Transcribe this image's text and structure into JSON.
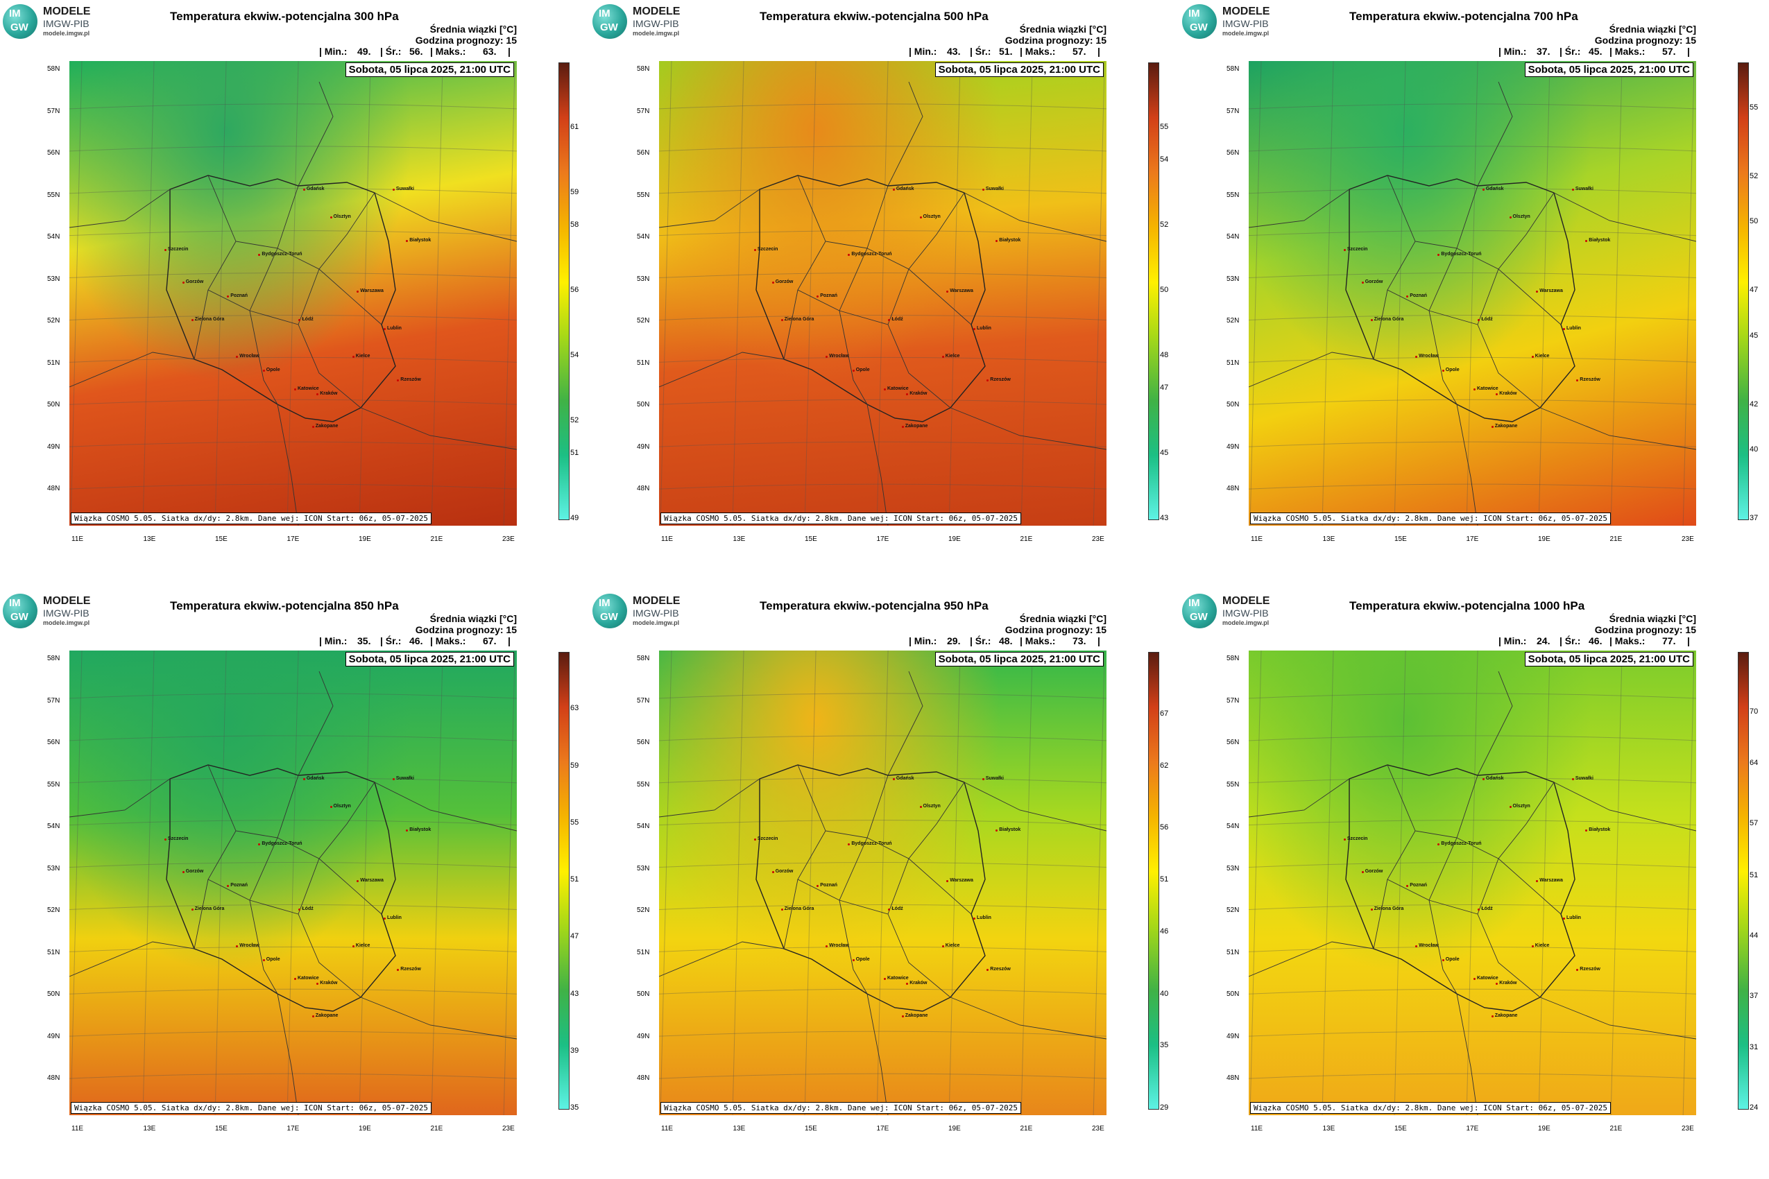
{
  "logo": {
    "top": "MODELE",
    "org": "IMGW-PIB",
    "url": "modele.imgw.pl",
    "mark_top": "IM",
    "mark_bottom": "GW"
  },
  "info": {
    "line1": "Średnia wiązki [°C]",
    "line2": "Godzina prognozy: 15"
  },
  "stat_labels": {
    "min": "| Min.:",
    "avg": "| Śr.:",
    "max": "| Maks.:",
    "end": "|"
  },
  "date_label": "Sobota, 05 lipca 2025, 21:00 UTC",
  "footer": "Wiązka COSMO 5.05. Siatka dx/dy: 2.8km. Dane wej: ICON Start: 06z, 05-07-2025",
  "lat_ticks": [
    "58N",
    "57N",
    "56N",
    "55N",
    "54N",
    "53N",
    "52N",
    "51N",
    "50N",
    "49N",
    "48N"
  ],
  "lon_ticks": [
    "11E",
    "13E",
    "15E",
    "17E",
    "19E",
    "21E",
    "23E"
  ],
  "cities": [
    "Gdańsk",
    "Suwałki",
    "Olsztyn",
    "Szczecin",
    "Bydgoszcz-Toruń",
    "Białystok",
    "Gorzów",
    "Poznań",
    "Warszawa",
    "Zielona Góra",
    "Łódź",
    "Lublin",
    "Wrocław",
    "Kielce",
    "Opole",
    "Rzeszów",
    "Katowice",
    "Kraków",
    "Zakopane"
  ],
  "colors": {
    "low": "#5ef2e4",
    "mid": "#fff000",
    "high": "#5a1c10"
  },
  "chart_data": [
    {
      "type": "heatmap",
      "title": "Temperatura ekwiw.-potencjalna 300 hPa",
      "min": "49.",
      "avg": "56.",
      "max": "63.",
      "colorbar_ticks": [
        49,
        51,
        52,
        54,
        56,
        58,
        59,
        61
      ],
      "colorbar_range": [
        49,
        63
      ]
    },
    {
      "type": "heatmap",
      "title": "Temperatura ekwiw.-potencjalna 500 hPa",
      "min": "43.",
      "avg": "51.",
      "max": "57.",
      "colorbar_ticks": [
        43,
        45,
        47,
        48,
        50,
        52,
        54,
        55
      ],
      "colorbar_range": [
        43,
        57
      ]
    },
    {
      "type": "heatmap",
      "title": "Temperatura ekwiw.-potencjalna 700 hPa",
      "min": "37.",
      "avg": "45.",
      "max": "57.",
      "colorbar_ticks": [
        37,
        40,
        42,
        45,
        47,
        50,
        52,
        55
      ],
      "colorbar_range": [
        37,
        57
      ]
    },
    {
      "type": "heatmap",
      "title": "Temperatura ekwiw.-potencjalna 850 hPa",
      "min": "35.",
      "avg": "46.",
      "max": "67.",
      "colorbar_ticks": [
        35,
        39,
        43,
        47,
        51,
        55,
        59,
        63
      ],
      "colorbar_range": [
        35,
        67
      ]
    },
    {
      "type": "heatmap",
      "title": "Temperatura ekwiw.-potencjalna 950 hPa",
      "min": "29.",
      "avg": "48.",
      "max": "73.",
      "colorbar_ticks": [
        29,
        35,
        40,
        46,
        51,
        56,
        62,
        67
      ],
      "colorbar_range": [
        29,
        73
      ]
    },
    {
      "type": "heatmap",
      "title": "Temperatura ekwiw.-potencjalna 1000 hPa",
      "min": "24.",
      "avg": "46.",
      "max": "77.",
      "colorbar_ticks": [
        24,
        31,
        37,
        44,
        51,
        57,
        64,
        70
      ],
      "colorbar_range": [
        24,
        77
      ]
    }
  ]
}
